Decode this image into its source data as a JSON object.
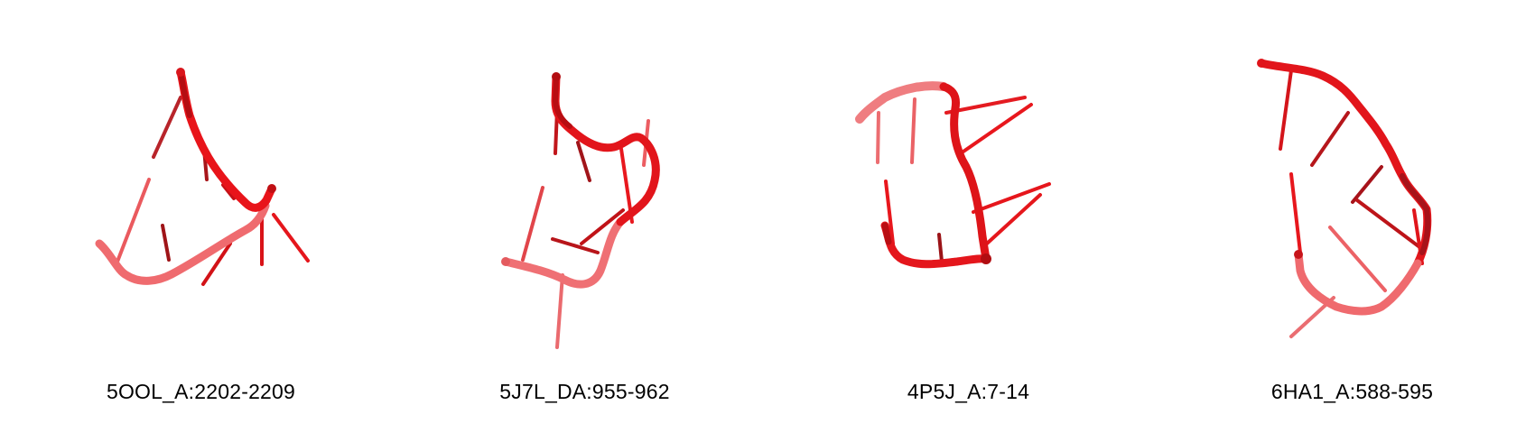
{
  "panels": [
    {
      "id": "p1",
      "label": "5OOL_A:2202-2209"
    },
    {
      "id": "p2",
      "label": "5J7L_DA:955-962"
    },
    {
      "id": "p3",
      "label": "4P5J_A:7-14"
    },
    {
      "id": "p4",
      "label": "6HA1_A:588-595"
    }
  ],
  "colors": {
    "backbone": "#e8141a",
    "backbone_dark": "#b40d12",
    "backbone_light": "#ef6468"
  }
}
